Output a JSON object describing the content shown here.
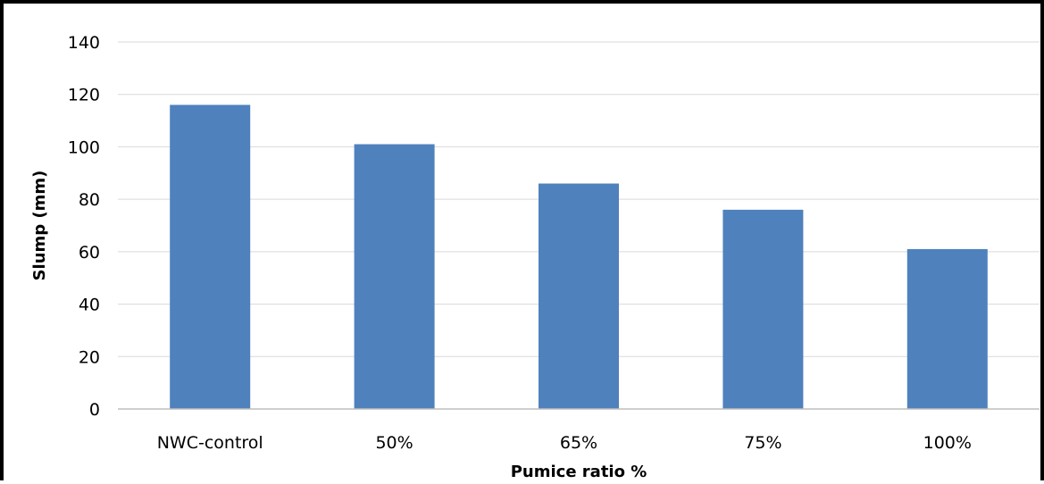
{
  "chart_data": {
    "type": "bar",
    "categories": [
      "NWC-control",
      "50%",
      "65%",
      "75%",
      "100%"
    ],
    "values": [
      116,
      101,
      86,
      76,
      61
    ],
    "title": "",
    "xlabel": "Pumice ratio %",
    "ylabel": "Slump  (mm)",
    "ylim": [
      0,
      140
    ],
    "yticks": [
      0,
      20,
      40,
      60,
      80,
      100,
      120,
      140
    ],
    "grid": true,
    "legend": "none",
    "colors": {
      "bar": "#4f81bd",
      "grid": "#d9d9d9",
      "axis": "#bfbfbf",
      "border": "#000000"
    }
  }
}
